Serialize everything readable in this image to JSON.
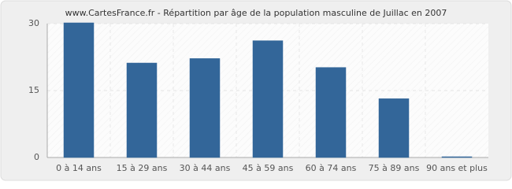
{
  "chart_data": {
    "type": "bar",
    "title": "www.CartesFrance.fr - Répartition par âge de la population masculine de Juillac en 2007",
    "categories": [
      "0 à 14 ans",
      "15 à 29 ans",
      "30 à 44 ans",
      "45 à 59 ans",
      "60 à 74 ans",
      "75 à 89 ans",
      "90 ans et plus"
    ],
    "values": [
      30,
      21,
      22,
      26,
      20,
      13,
      0
    ],
    "color": "#336699",
    "ylim": [
      0,
      30
    ],
    "yticks": [
      0,
      15,
      30
    ],
    "grid": true
  }
}
